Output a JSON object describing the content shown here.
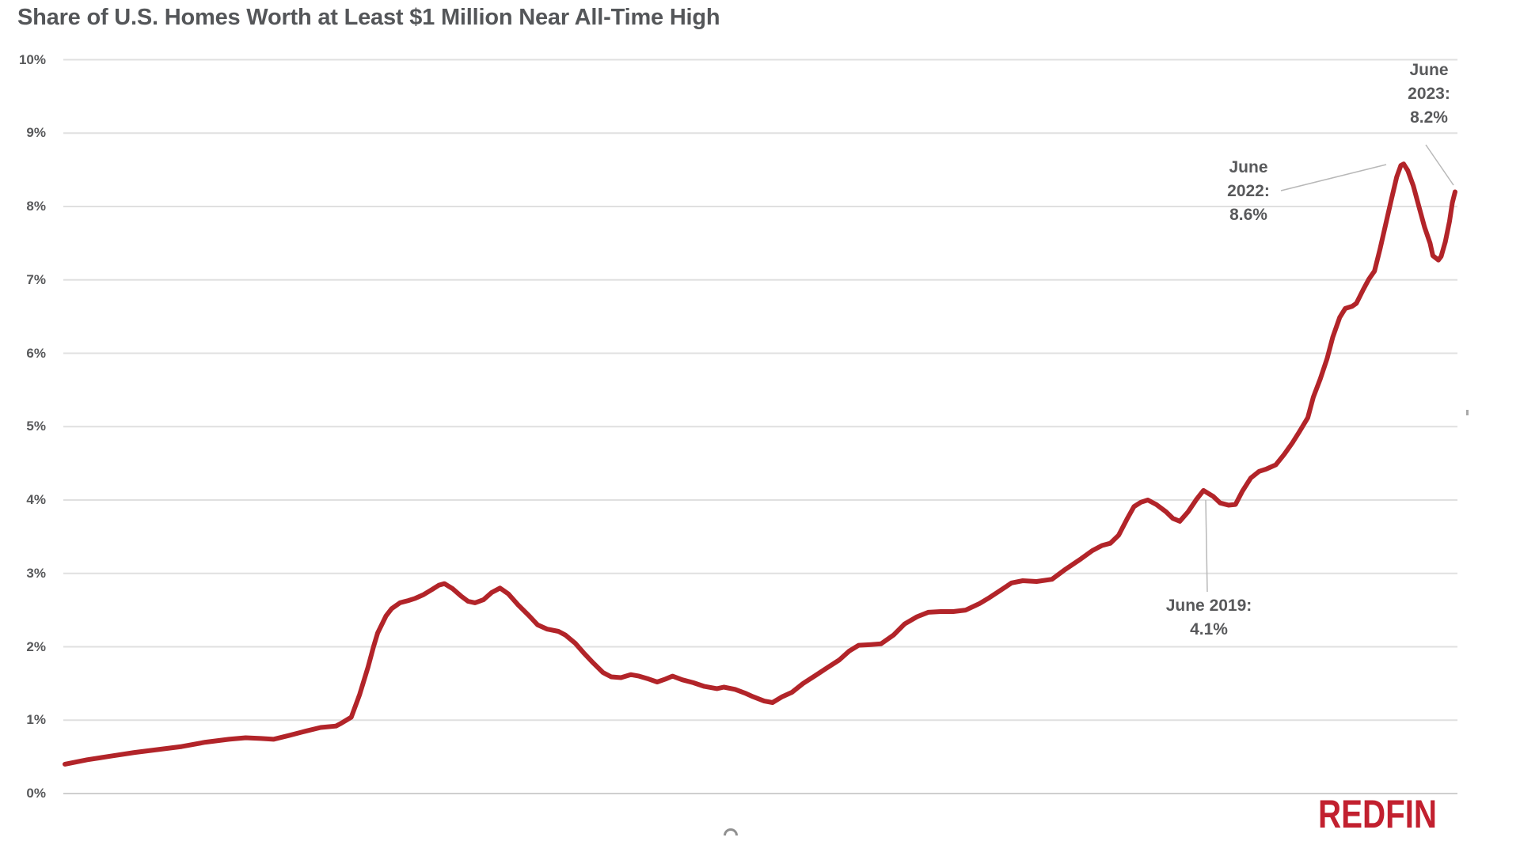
{
  "header": {
    "title": "Share of U.S. Homes Worth at Least $1 Million Near All-Time High"
  },
  "branding": {
    "logo_text": "REDFIN",
    "logo_color": "#c2202f"
  },
  "colors": {
    "line": "#b22429",
    "grid": "#e0e0e0",
    "grid_zero": "#cfcfcf",
    "text": "#58595b",
    "leader": "#b8b8b8"
  },
  "chart_data": {
    "type": "line",
    "title": "Share of U.S. Homes Worth at Least $1 Million Near All-Time High",
    "xlabel": "",
    "ylabel": "",
    "x_axis": {
      "labels_visible": false
    },
    "y_axis": {
      "min": 0,
      "max": 10,
      "step": 1,
      "labels": [
        "0%",
        "1%",
        "2%",
        "3%",
        "4%",
        "5%",
        "6%",
        "7%",
        "8%",
        "9%",
        "10%"
      ]
    },
    "grid": "horizontal",
    "legend": "none",
    "series": [
      {
        "name": "Share of U.S. homes worth at least $1 million",
        "color": "#b22429",
        "points": [
          [
            0.0,
            0.4
          ],
          [
            0.016,
            0.46
          ],
          [
            0.033,
            0.51
          ],
          [
            0.05,
            0.56
          ],
          [
            0.067,
            0.6
          ],
          [
            0.084,
            0.64
          ],
          [
            0.101,
            0.7
          ],
          [
            0.118,
            0.74
          ],
          [
            0.13,
            0.76
          ],
          [
            0.141,
            0.75
          ],
          [
            0.15,
            0.74
          ],
          [
            0.161,
            0.79
          ],
          [
            0.173,
            0.85
          ],
          [
            0.184,
            0.9
          ],
          [
            0.195,
            0.92
          ],
          [
            0.198,
            0.95
          ],
          [
            0.206,
            1.04
          ],
          [
            0.212,
            1.35
          ],
          [
            0.218,
            1.72
          ],
          [
            0.222,
            2.0
          ],
          [
            0.225,
            2.19
          ],
          [
            0.231,
            2.42
          ],
          [
            0.235,
            2.52
          ],
          [
            0.241,
            2.6
          ],
          [
            0.247,
            2.63
          ],
          [
            0.252,
            2.66
          ],
          [
            0.258,
            2.71
          ],
          [
            0.264,
            2.78
          ],
          [
            0.269,
            2.84
          ],
          [
            0.273,
            2.86
          ],
          [
            0.279,
            2.79
          ],
          [
            0.285,
            2.69
          ],
          [
            0.29,
            2.62
          ],
          [
            0.295,
            2.6
          ],
          [
            0.301,
            2.64
          ],
          [
            0.307,
            2.74
          ],
          [
            0.313,
            2.8
          ],
          [
            0.319,
            2.72
          ],
          [
            0.326,
            2.57
          ],
          [
            0.334,
            2.42
          ],
          [
            0.34,
            2.3
          ],
          [
            0.347,
            2.24
          ],
          [
            0.355,
            2.21
          ],
          [
            0.36,
            2.16
          ],
          [
            0.367,
            2.05
          ],
          [
            0.373,
            1.92
          ],
          [
            0.38,
            1.78
          ],
          [
            0.387,
            1.65
          ],
          [
            0.393,
            1.59
          ],
          [
            0.4,
            1.58
          ],
          [
            0.407,
            1.62
          ],
          [
            0.413,
            1.6
          ],
          [
            0.42,
            1.56
          ],
          [
            0.426,
            1.52
          ],
          [
            0.432,
            1.56
          ],
          [
            0.437,
            1.6
          ],
          [
            0.444,
            1.55
          ],
          [
            0.452,
            1.51
          ],
          [
            0.46,
            1.46
          ],
          [
            0.469,
            1.43
          ],
          [
            0.474,
            1.45
          ],
          [
            0.482,
            1.42
          ],
          [
            0.489,
            1.37
          ],
          [
            0.495,
            1.32
          ],
          [
            0.503,
            1.26
          ],
          [
            0.509,
            1.24
          ],
          [
            0.516,
            1.32
          ],
          [
            0.523,
            1.38
          ],
          [
            0.531,
            1.5
          ],
          [
            0.54,
            1.61
          ],
          [
            0.548,
            1.71
          ],
          [
            0.557,
            1.82
          ],
          [
            0.564,
            1.94
          ],
          [
            0.571,
            2.02
          ],
          [
            0.58,
            2.03
          ],
          [
            0.587,
            2.04
          ],
          [
            0.596,
            2.16
          ],
          [
            0.604,
            2.31
          ],
          [
            0.613,
            2.41
          ],
          [
            0.621,
            2.47
          ],
          [
            0.63,
            2.48
          ],
          [
            0.639,
            2.48
          ],
          [
            0.648,
            2.5
          ],
          [
            0.658,
            2.59
          ],
          [
            0.665,
            2.67
          ],
          [
            0.673,
            2.77
          ],
          [
            0.681,
            2.87
          ],
          [
            0.689,
            2.9
          ],
          [
            0.699,
            2.89
          ],
          [
            0.71,
            2.92
          ],
          [
            0.72,
            3.06
          ],
          [
            0.731,
            3.2
          ],
          [
            0.739,
            3.31
          ],
          [
            0.746,
            3.38
          ],
          [
            0.752,
            3.41
          ],
          [
            0.758,
            3.52
          ],
          [
            0.764,
            3.74
          ],
          [
            0.769,
            3.91
          ],
          [
            0.774,
            3.97
          ],
          [
            0.779,
            4.0
          ],
          [
            0.785,
            3.94
          ],
          [
            0.792,
            3.84
          ],
          [
            0.797,
            3.75
          ],
          [
            0.802,
            3.71
          ],
          [
            0.808,
            3.84
          ],
          [
            0.814,
            4.01
          ],
          [
            0.819,
            4.13
          ],
          [
            0.826,
            4.05
          ],
          [
            0.831,
            3.96
          ],
          [
            0.837,
            3.93
          ],
          [
            0.842,
            3.94
          ],
          [
            0.847,
            4.12
          ],
          [
            0.853,
            4.3
          ],
          [
            0.859,
            4.39
          ],
          [
            0.864,
            4.42
          ],
          [
            0.871,
            4.48
          ],
          [
            0.877,
            4.62
          ],
          [
            0.883,
            4.78
          ],
          [
            0.888,
            4.93
          ],
          [
            0.894,
            5.12
          ],
          [
            0.898,
            5.4
          ],
          [
            0.903,
            5.65
          ],
          [
            0.908,
            5.93
          ],
          [
            0.912,
            6.22
          ],
          [
            0.917,
            6.49
          ],
          [
            0.921,
            6.61
          ],
          [
            0.926,
            6.64
          ],
          [
            0.929,
            6.68
          ],
          [
            0.934,
            6.87
          ],
          [
            0.938,
            7.01
          ],
          [
            0.942,
            7.12
          ],
          [
            0.946,
            7.42
          ],
          [
            0.95,
            7.75
          ],
          [
            0.954,
            8.08
          ],
          [
            0.958,
            8.4
          ],
          [
            0.961,
            8.56
          ],
          [
            0.963,
            8.58
          ],
          [
            0.966,
            8.49
          ],
          [
            0.97,
            8.28
          ],
          [
            0.974,
            8.0
          ],
          [
            0.978,
            7.72
          ],
          [
            0.982,
            7.5
          ],
          [
            0.984,
            7.33
          ],
          [
            0.988,
            7.27
          ],
          [
            0.99,
            7.32
          ],
          [
            0.993,
            7.52
          ],
          [
            0.996,
            7.8
          ],
          [
            0.998,
            8.05
          ],
          [
            1.0,
            8.2
          ]
        ]
      }
    ],
    "annotations": [
      {
        "id": "june-2019",
        "lines": [
          "June 2019:",
          "4.1%"
        ],
        "anchor": {
          "x": 0.819,
          "y": 4.13
        }
      },
      {
        "id": "june-2022",
        "lines": [
          "June",
          "2022:",
          "8.6%"
        ],
        "anchor": {
          "x": 0.963,
          "y": 8.58
        }
      },
      {
        "id": "june-2023",
        "lines": [
          "June",
          "2023:",
          "8.2%"
        ],
        "anchor": {
          "x": 1.0,
          "y": 8.2
        }
      }
    ]
  }
}
